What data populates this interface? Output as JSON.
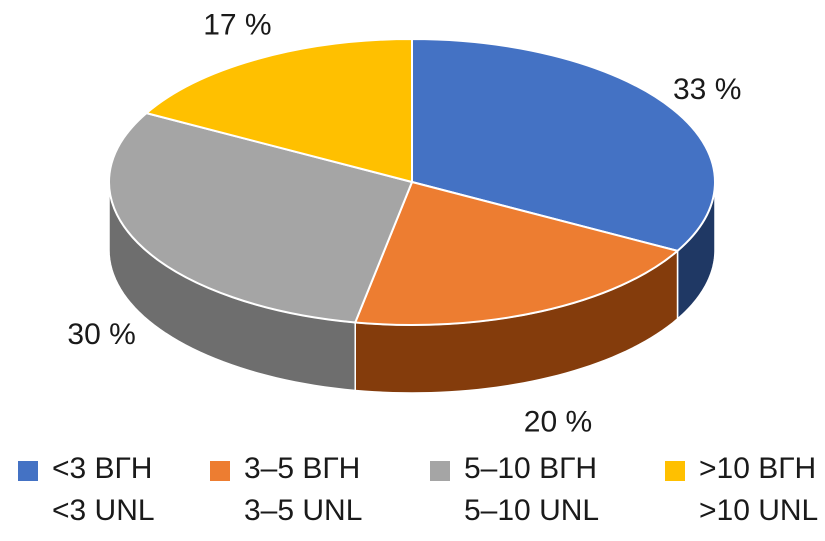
{
  "chart_data": {
    "type": "pie",
    "style": "3d",
    "categories": [
      {
        "line1": "<3 ВГН",
        "line2": "<3 UNL"
      },
      {
        "line1": "3–5 ВГН",
        "line2": "3–5 UNL"
      },
      {
        "line1": "5–10 ВГН",
        "line2": "5–10 UNL"
      },
      {
        "line1": ">10 ВГН",
        "line2": ">10 UNL"
      }
    ],
    "values": [
      33,
      20,
      30,
      17
    ],
    "data_labels": [
      "33 %",
      "20 %",
      "30 %",
      "17 %"
    ],
    "colors": [
      "#4472C4",
      "#ED7D31",
      "#A5A5A5",
      "#FFC000"
    ],
    "side_colors": [
      "#1F3864",
      "#843C0C",
      "#6E6E6E",
      "#BF8F00"
    ],
    "legend_position": "bottom"
  }
}
